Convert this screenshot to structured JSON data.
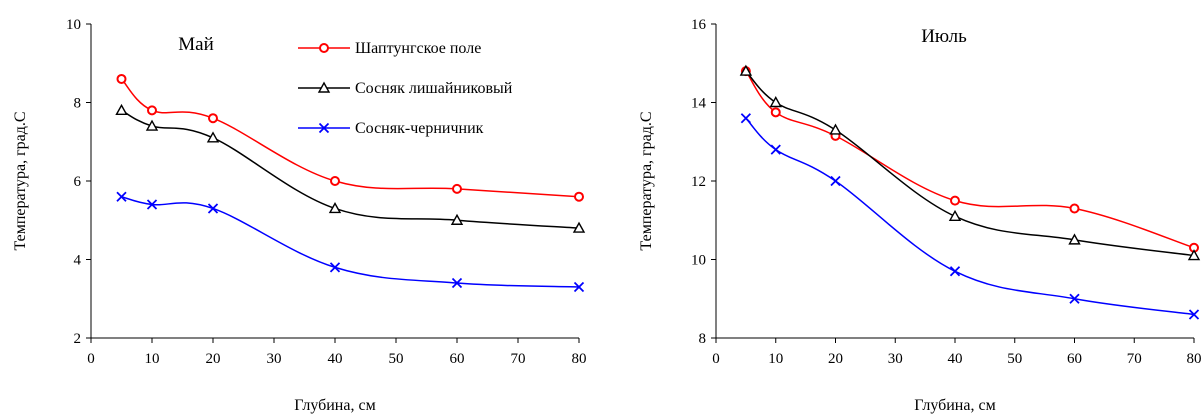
{
  "chart_data": [
    {
      "type": "line",
      "title": "Май",
      "xlabel": "Глубина, см",
      "ylabel": "Температура, град.С",
      "x": [
        5,
        10,
        20,
        40,
        60,
        80
      ],
      "xlim": [
        0,
        80
      ],
      "ylim": [
        2,
        10
      ],
      "xticks": [
        "0",
        "10",
        "20",
        "30",
        "40",
        "50",
        "60",
        "70",
        "80"
      ],
      "yticks": [
        "2",
        "4",
        "6",
        "8",
        "10"
      ],
      "grid": false,
      "legend": "top-right",
      "series": [
        {
          "name": "Шаптунгское поле",
          "values": [
            8.6,
            7.8,
            7.6,
            6.0,
            5.8,
            5.6
          ],
          "color": "#ff0000",
          "marker": "circle"
        },
        {
          "name": "Сосняк лишайниковый",
          "values": [
            7.8,
            7.4,
            7.1,
            5.3,
            5.0,
            4.8
          ],
          "color": "#000000",
          "marker": "triangle"
        },
        {
          "name": "Сосняк-черничник",
          "values": [
            5.6,
            5.4,
            5.3,
            3.8,
            3.4,
            3.3
          ],
          "color": "#0000ff",
          "marker": "cross"
        }
      ]
    },
    {
      "type": "line",
      "title": "Июль",
      "xlabel": "Глубина, см",
      "ylabel": "Температура, град.С",
      "x": [
        5,
        10,
        20,
        40,
        60,
        80
      ],
      "xlim": [
        0,
        80
      ],
      "ylim": [
        8,
        16
      ],
      "xticks": [
        "0",
        "10",
        "20",
        "30",
        "40",
        "50",
        "60",
        "70",
        "80"
      ],
      "yticks": [
        "8",
        "10",
        "12",
        "14",
        "16"
      ],
      "grid": false,
      "legend": "none",
      "series": [
        {
          "name": "Шаптунгское поле",
          "values": [
            14.8,
            13.75,
            13.15,
            11.5,
            11.3,
            10.3
          ],
          "color": "#ff0000",
          "marker": "circle"
        },
        {
          "name": "Сосняк лишайниковый",
          "values": [
            14.8,
            14.0,
            13.3,
            11.1,
            10.5,
            10.1
          ],
          "color": "#000000",
          "marker": "triangle"
        },
        {
          "name": "Сосняк-черничник",
          "values": [
            13.6,
            12.8,
            12.0,
            9.7,
            9.0,
            8.6
          ],
          "color": "#0000ff",
          "marker": "cross"
        }
      ]
    }
  ]
}
